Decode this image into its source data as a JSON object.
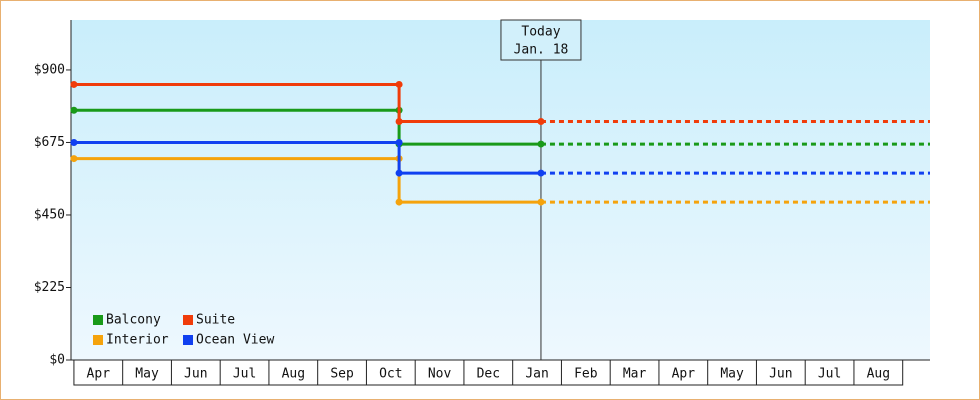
{
  "chart_data": {
    "type": "step-line",
    "categories": [
      "Apr",
      "May",
      "Jun",
      "Jul",
      "Aug",
      "Sep",
      "Oct",
      "Nov",
      "Dec",
      "Jan",
      "Feb",
      "Mar",
      "Apr",
      "May",
      "Jun",
      "Jul",
      "Aug"
    ],
    "x": [
      0,
      6.67,
      6.67,
      9.58
    ],
    "xlim": [
      -0.06,
      17.56
    ],
    "ylim": [
      0,
      1055
    ],
    "yticks": [
      {
        "value": 0,
        "label": "$0"
      },
      {
        "value": 225,
        "label": "$225"
      },
      {
        "value": 450,
        "label": "$450"
      },
      {
        "value": 675,
        "label": "$675"
      },
      {
        "value": 900,
        "label": "$900"
      }
    ],
    "grid": false,
    "legend": "lower-left",
    "series": [
      {
        "name": "Balcony",
        "color": "#199a19",
        "values": [
          775,
          775,
          670,
          670
        ]
      },
      {
        "name": "Suite",
        "color": "#f03c0a",
        "values": [
          855,
          855,
          740,
          740
        ]
      },
      {
        "name": "Interior",
        "color": "#f5a30c",
        "values": [
          625,
          625,
          490,
          490
        ]
      },
      {
        "name": "Ocean View",
        "color": "#1040f0",
        "values": [
          675,
          675,
          580,
          580
        ]
      }
    ],
    "annotation": {
      "lines": [
        "Today",
        "Jan. 18"
      ],
      "x": 9.58
    }
  }
}
